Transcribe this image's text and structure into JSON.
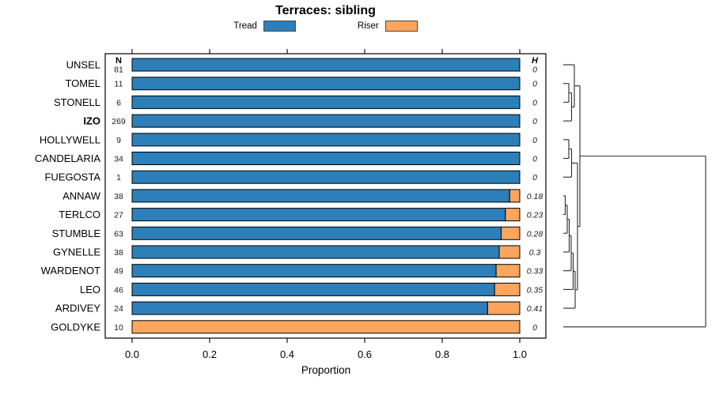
{
  "chart_data": {
    "type": "stacked-bar-horizontal",
    "title": "Terraces: sibling",
    "xlabel": "Proportion",
    "x_tick_labels": [
      "0.0",
      "0.2",
      "0.4",
      "0.6",
      "0.8",
      "1.0"
    ],
    "x_tick_values": [
      0,
      0.2,
      0.4,
      0.6,
      0.8,
      1.0
    ],
    "xlim": [
      0,
      1
    ],
    "legend": [
      {
        "label": "Tread",
        "color": "#2C7FB8"
      },
      {
        "label": "Riser",
        "color": "#FBA55D"
      }
    ],
    "n_header": "N",
    "h_header": "H",
    "rows": [
      {
        "label": "UNSEL",
        "n": "81",
        "tread": 1,
        "h": "0",
        "bold": false
      },
      {
        "label": "TOMEL",
        "n": "11",
        "tread": 1,
        "h": "0",
        "bold": false
      },
      {
        "label": "STONELL",
        "n": "6",
        "tread": 1,
        "h": "0",
        "bold": false
      },
      {
        "label": "IZO",
        "n": "269",
        "tread": 1,
        "h": "0",
        "bold": true
      },
      {
        "label": "HOLLYWELL",
        "n": "9",
        "tread": 1,
        "h": "0",
        "bold": false
      },
      {
        "label": "CANDELARIA",
        "n": "34",
        "tread": 1,
        "h": "0",
        "bold": false
      },
      {
        "label": "FUEGOSTA",
        "n": "1",
        "tread": 1,
        "h": "0",
        "bold": false
      },
      {
        "label": "ANNAW",
        "n": "38",
        "tread": 0.974,
        "h": "0.18",
        "bold": false
      },
      {
        "label": "TERLCO",
        "n": "27",
        "tread": 0.963,
        "h": "0.23",
        "bold": false
      },
      {
        "label": "STUMBLE",
        "n": "63",
        "tread": 0.952,
        "h": "0.28",
        "bold": false
      },
      {
        "label": "GYNELLE",
        "n": "38",
        "tread": 0.947,
        "h": "0.3",
        "bold": false
      },
      {
        "label": "WARDENOT",
        "n": "49",
        "tread": 0.939,
        "h": "0.33",
        "bold": false
      },
      {
        "label": "LEO",
        "n": "46",
        "tread": 0.935,
        "h": "0.35",
        "bold": false
      },
      {
        "label": "ARDIVEY",
        "n": "24",
        "tread": 0.917,
        "h": "0.41",
        "bold": false
      },
      {
        "label": "GOLDYKE",
        "n": "10",
        "tread": 0,
        "h": "0",
        "bold": false
      }
    ],
    "dendrogram": {
      "leaf_x": 712,
      "merges": [
        {
          "at": 719,
          "children": [
            "L1",
            "L2"
          ]
        },
        {
          "at": 722.5,
          "children": [
            "M0",
            "L3"
          ]
        },
        {
          "at": 726,
          "children": [
            "L0",
            "M1"
          ]
        },
        {
          "at": 719,
          "children": [
            "L4",
            "L5"
          ]
        },
        {
          "at": 722.5,
          "children": [
            "M3",
            "L6"
          ]
        },
        {
          "at": 714.5,
          "children": [
            "L7",
            "L8"
          ]
        },
        {
          "at": 717,
          "children": [
            "M5",
            "L9"
          ]
        },
        {
          "at": 719.5,
          "children": [
            "M6",
            "L10"
          ]
        },
        {
          "at": 722,
          "children": [
            "M7",
            "L11"
          ]
        },
        {
          "at": 724.5,
          "children": [
            "M8",
            "L12"
          ]
        },
        {
          "at": 727,
          "children": [
            "M9",
            "L13"
          ]
        },
        {
          "at": 730,
          "children": [
            "M4",
            "M10"
          ]
        },
        {
          "at": 733,
          "children": [
            "M2",
            "M11"
          ]
        },
        {
          "at": 892,
          "children": [
            "M12",
            "L14"
          ]
        }
      ]
    },
    "colors": {
      "tread": "#2C7FB8",
      "riser": "#FBA55D",
      "axis": "#000000",
      "dendrogram": "#2b2b2b"
    }
  }
}
